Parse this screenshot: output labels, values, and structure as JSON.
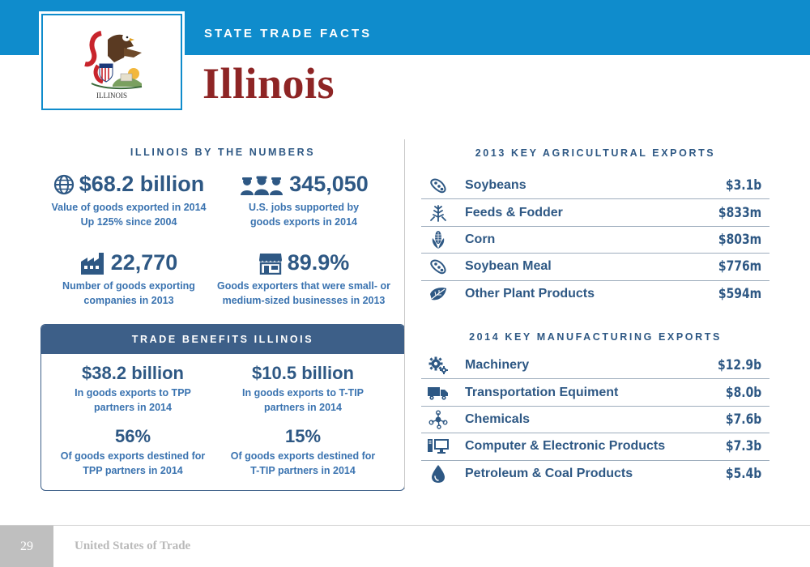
{
  "header": {
    "subtitle": "STATE TRADE FACTS",
    "state_name": "Illinois",
    "flag_label": "ILLINOIS"
  },
  "by_the_numbers": {
    "title": "ILLINOIS BY THE NUMBERS",
    "stats": [
      {
        "icon": "globe-icon",
        "value": "$68.2 billion",
        "desc_line1": "Value of goods exported in 2014",
        "desc_line2": "Up 125% since 2004"
      },
      {
        "icon": "workers-icon",
        "value": "345,050",
        "desc_line1": "U.S. jobs supported by",
        "desc_line2": "goods exports in 2014"
      },
      {
        "icon": "factory-icon",
        "value": "22,770",
        "desc_line1": "Number of goods exporting",
        "desc_line2": "companies in 2013"
      },
      {
        "icon": "storefront-icon",
        "value": "89.9%",
        "desc_line1": "Goods exporters that were small- or",
        "desc_line2": "medium-sized businesses in 2013"
      }
    ]
  },
  "trade_benefits": {
    "title": "TRADE BENEFITS ILLINOIS",
    "items": [
      {
        "value": "$38.2 billion",
        "desc_line1": "In goods exports to TPP",
        "desc_line2": "partners in 2014"
      },
      {
        "value": "$10.5 billion",
        "desc_line1": "In goods exports to T-TIP",
        "desc_line2": "partners in 2014"
      },
      {
        "value": "56%",
        "desc_line1": "Of goods exports destined for",
        "desc_line2": "TPP partners in 2014"
      },
      {
        "value": "15%",
        "desc_line1": "Of goods exports destined for",
        "desc_line2": "T-TIP partners in 2014"
      }
    ]
  },
  "agricultural_exports": {
    "title": "2013 KEY AGRICULTURAL EXPORTS",
    "rows": [
      {
        "icon": "soybean-icon",
        "name": "Soybeans",
        "value": "$3.1b"
      },
      {
        "icon": "wheat-icon",
        "name": "Feeds & Fodder",
        "value": "$833m"
      },
      {
        "icon": "corn-icon",
        "name": "Corn",
        "value": "$803m"
      },
      {
        "icon": "soybean-icon",
        "name": "Soybean Meal",
        "value": "$776m"
      },
      {
        "icon": "leaf-icon",
        "name": "Other Plant Products",
        "value": "$594m"
      }
    ]
  },
  "manufacturing_exports": {
    "title": "2014 KEY MANUFACTURING EXPORTS",
    "rows": [
      {
        "icon": "gears-icon",
        "name": "Machinery",
        "value": "$12.9b"
      },
      {
        "icon": "truck-icon",
        "name": "Transportation Equiment",
        "value": "$8.0b"
      },
      {
        "icon": "molecule-icon",
        "name": "Chemicals",
        "value": "$7.6b"
      },
      {
        "icon": "computer-icon",
        "name": "Computer & Electronic Products",
        "value": "$7.3b"
      },
      {
        "icon": "oil-drop-icon",
        "name": "Petroleum & Coal Products",
        "value": "$5.4b"
      }
    ]
  },
  "footer": {
    "page_number": "29",
    "publication": "United States of Trade"
  },
  "colors": {
    "header_blue": "#0f8ccc",
    "title_red": "#8e2525",
    "navy": "#2e5884",
    "panel_navy": "#3d5f88"
  }
}
